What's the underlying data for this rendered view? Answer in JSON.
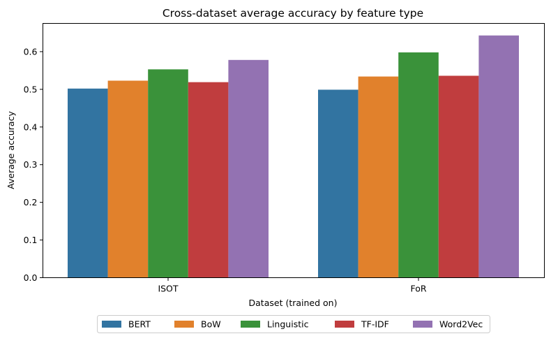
{
  "chart_data": {
    "type": "bar",
    "title": "Cross-dataset average accuracy by feature type",
    "xlabel": "Dataset (trained on)",
    "ylabel": "Average accuracy",
    "categories": [
      "ISOT",
      "FoR"
    ],
    "ylim": [
      0,
      0.675
    ],
    "yticks": [
      "0.0",
      "0.1",
      "0.2",
      "0.3",
      "0.4",
      "0.5",
      "0.6"
    ],
    "grid": false,
    "legend_position": "bottom-center",
    "series": [
      {
        "name": "BERT",
        "color": "#3274a1",
        "values": [
          0.502,
          0.499
        ]
      },
      {
        "name": "BoW",
        "color": "#e1812c",
        "values": [
          0.523,
          0.534
        ]
      },
      {
        "name": "Linguistic",
        "color": "#3a923a",
        "values": [
          0.553,
          0.598
        ]
      },
      {
        "name": "TF-IDF",
        "color": "#c03d3e",
        "values": [
          0.519,
          0.536
        ]
      },
      {
        "name": "Word2Vec",
        "color": "#9372b2",
        "values": [
          0.578,
          0.643
        ]
      }
    ]
  }
}
